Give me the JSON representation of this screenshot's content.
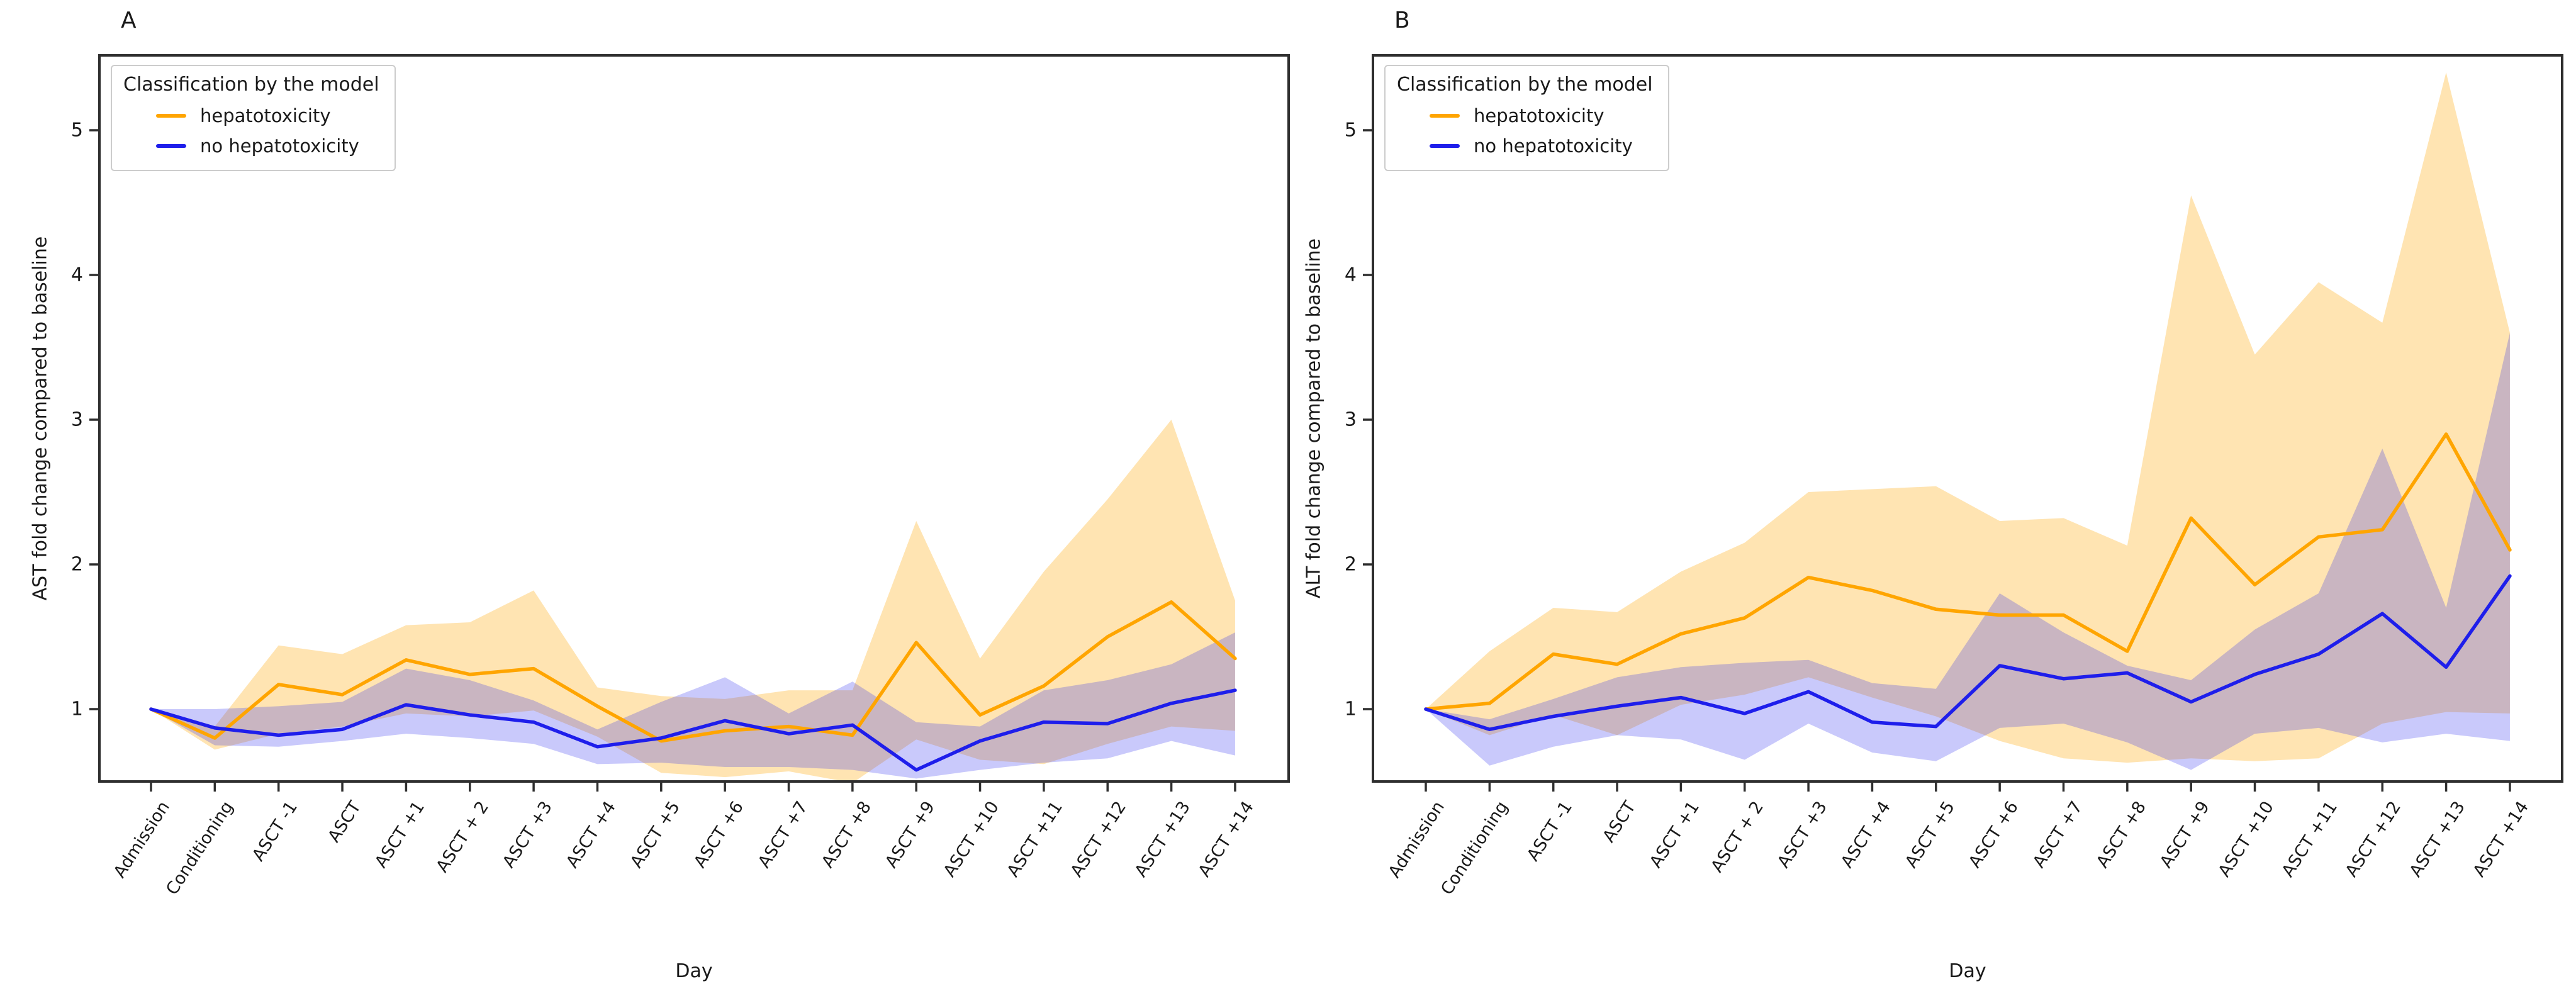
{
  "figure": {
    "background": "#ffffff",
    "text_color": "#1a1a1a",
    "spine_color": "#2e2e2e",
    "legend": {
      "title": "Classification by the model",
      "items": [
        {
          "label": "hepatotoxicity",
          "color": "#FFA500"
        },
        {
          "label": "no hepatotoxicity",
          "color": "#1E1EEB"
        }
      ]
    }
  },
  "chart_data": [
    {
      "type": "line",
      "panel_label": "A",
      "title": "",
      "xlabel": "Day",
      "ylabel": "AST fold change compared to baseline",
      "ylim": [
        0.5,
        5.52
      ],
      "yticks": [
        1,
        2,
        3,
        4,
        5
      ],
      "grid": false,
      "legend_position": "upper left",
      "categories": [
        "Admission",
        "Conditioning",
        "ASCT -1",
        "ASCT",
        "ASCT +1",
        "ASCT + 2",
        "ASCT +3",
        "ASCT +4",
        "ASCT +5",
        "ASCT +6",
        "ASCT +7",
        "ASCT +8",
        "ASCT +9",
        "ASCT +10",
        "ASCT +11",
        "ASCT +12",
        "ASCT +13",
        "ASCT +14"
      ],
      "series": [
        {
          "name": "hepatotoxicity",
          "color": "#FFA500",
          "band_fill": "rgba(255,165,0,0.30)",
          "values": [
            1.0,
            0.8,
            1.17,
            1.1,
            1.34,
            1.24,
            1.28,
            1.02,
            0.78,
            0.85,
            0.88,
            0.82,
            1.46,
            0.96,
            1.16,
            1.5,
            1.74,
            1.35
          ],
          "band_upper": [
            1.0,
            0.88,
            1.44,
            1.38,
            1.58,
            1.6,
            1.82,
            1.15,
            1.09,
            1.07,
            1.13,
            1.13,
            2.3,
            1.35,
            1.95,
            2.45,
            3.0,
            1.75
          ],
          "band_lower": [
            1.0,
            0.72,
            0.83,
            0.88,
            0.97,
            0.95,
            0.99,
            0.81,
            0.56,
            0.53,
            0.57,
            0.49,
            0.79,
            0.65,
            0.62,
            0.76,
            0.88,
            0.85
          ]
        },
        {
          "name": "no hepatotoxicity",
          "color": "#1E1EEB",
          "band_fill": "rgba(40,40,240,0.25)",
          "values": [
            1.0,
            0.87,
            0.82,
            0.86,
            1.03,
            0.96,
            0.91,
            0.74,
            0.8,
            0.92,
            0.83,
            0.89,
            0.58,
            0.78,
            0.91,
            0.9,
            1.04,
            1.13
          ],
          "band_upper": [
            1.0,
            1.0,
            1.02,
            1.05,
            1.28,
            1.2,
            1.06,
            0.86,
            1.05,
            1.22,
            0.97,
            1.19,
            0.91,
            0.88,
            1.13,
            1.2,
            1.31,
            1.53
          ],
          "band_lower": [
            1.0,
            0.75,
            0.74,
            0.78,
            0.83,
            0.8,
            0.76,
            0.62,
            0.63,
            0.6,
            0.6,
            0.58,
            0.52,
            0.58,
            0.63,
            0.66,
            0.78,
            0.68
          ]
        }
      ]
    },
    {
      "type": "line",
      "panel_label": "B",
      "title": "",
      "xlabel": "Day",
      "ylabel": "ALT fold change compared to baseline",
      "ylim": [
        0.5,
        5.52
      ],
      "yticks": [
        1,
        2,
        3,
        4,
        5
      ],
      "grid": false,
      "legend_position": "upper left",
      "categories": [
        "Admission",
        "Conditioning",
        "ASCT -1",
        "ASCT",
        "ASCT +1",
        "ASCT + 2",
        "ASCT +3",
        "ASCT +4",
        "ASCT +5",
        "ASCT +6",
        "ASCT +7",
        "ASCT +8",
        "ASCT +9",
        "ASCT +10",
        "ASCT +11",
        "ASCT +12",
        "ASCT +13",
        "ASCT +14"
      ],
      "series": [
        {
          "name": "hepatotoxicity",
          "color": "#FFA500",
          "band_fill": "rgba(255,165,0,0.30)",
          "values": [
            1.0,
            1.04,
            1.38,
            1.31,
            1.52,
            1.63,
            1.91,
            1.82,
            1.69,
            1.65,
            1.65,
            1.4,
            2.32,
            1.86,
            2.19,
            2.24,
            2.9,
            2.1
          ],
          "band_upper": [
            1.0,
            1.4,
            1.7,
            1.67,
            1.95,
            2.15,
            2.5,
            2.52,
            2.54,
            2.3,
            2.32,
            2.13,
            4.55,
            3.45,
            3.95,
            3.67,
            5.4,
            3.6
          ],
          "band_lower": [
            1.0,
            0.82,
            0.96,
            0.82,
            1.03,
            1.1,
            1.22,
            1.08,
            0.95,
            0.78,
            0.66,
            0.63,
            0.66,
            0.64,
            0.66,
            0.9,
            0.98,
            0.97
          ]
        },
        {
          "name": "no hepatotoxicity",
          "color": "#1E1EEB",
          "band_fill": "rgba(40,40,240,0.25)",
          "values": [
            1.0,
            0.86,
            0.95,
            1.02,
            1.08,
            0.97,
            1.12,
            0.91,
            0.88,
            1.3,
            1.21,
            1.25,
            1.05,
            1.24,
            1.38,
            1.66,
            1.29,
            1.92
          ],
          "band_upper": [
            1.0,
            0.93,
            1.07,
            1.22,
            1.29,
            1.32,
            1.34,
            1.18,
            1.14,
            1.8,
            1.53,
            1.3,
            1.2,
            1.55,
            1.8,
            2.8,
            1.7,
            3.6
          ],
          "band_lower": [
            1.0,
            0.61,
            0.74,
            0.82,
            0.79,
            0.65,
            0.9,
            0.7,
            0.64,
            0.87,
            0.9,
            0.77,
            0.58,
            0.83,
            0.87,
            0.77,
            0.83,
            0.78
          ]
        }
      ]
    }
  ]
}
